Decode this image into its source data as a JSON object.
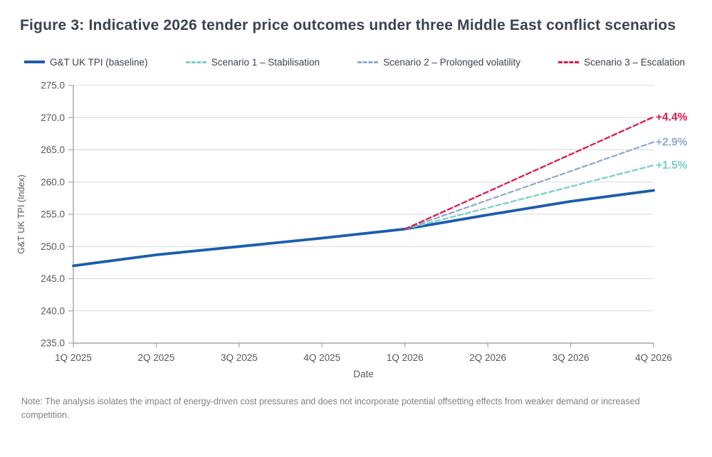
{
  "page": {
    "title": "Figure 3: Indicative 2026 tender price outcomes under three Middle East conflict scenarios",
    "note": "Note: The analysis isolates the impact of energy-driven cost pressures and does not incorporate potential offsetting effects from weaker demand or increased competition."
  },
  "colors": {
    "baseline": "#1c5dac",
    "scenario1": "#79d1c6",
    "scenario2": "#93a9ce",
    "scenario3": "#d91b4d",
    "axis": "#a6a6a6",
    "gridline": "#d9d9d9",
    "tick_text": "#595959",
    "title_text": "#3b4350",
    "note_text": "#808080"
  },
  "legend": [
    {
      "label": "G&T UK TPI (baseline)",
      "color": "#1c5dac",
      "style": "solid"
    },
    {
      "label": "Scenario 1 – Stabilisation",
      "color": "#79d1c6",
      "style": "dashed"
    },
    {
      "label": "Scenario 2 – Prolonged volatility",
      "color": "#93a9ce",
      "style": "dashed"
    },
    {
      "label": "Scenario 3 – Escalation",
      "color": "#d91b4d",
      "style": "dashed"
    }
  ],
  "chart_data": {
    "type": "line",
    "title": "Figure 3: Indicative 2026 tender price outcomes under three Middle East conflict scenarios",
    "xlabel": "Date",
    "ylabel": "G&T UK TPI (Index)",
    "ylim": [
      235.0,
      275.0
    ],
    "ytick_step": 5.0,
    "ytick_labels": [
      "275.0",
      "270.0",
      "265.0",
      "260.0",
      "255.0",
      "250.0",
      "245.0",
      "240.0",
      "235.0"
    ],
    "categories": [
      "1Q 2025",
      "2Q 2025",
      "3Q 2025",
      "4Q 2025",
      "1Q 2026",
      "2Q 2026",
      "3Q 2026",
      "4Q 2026"
    ],
    "grid": "horizontal",
    "legend_position": "top",
    "series": [
      {
        "name": "G&T UK TPI (baseline)",
        "style": "solid",
        "color": "#1c5dac",
        "values": [
          247.0,
          248.7,
          250.0,
          251.3,
          252.7,
          254.9,
          257.0,
          258.7
        ]
      },
      {
        "name": "Scenario 1 – Stabilisation",
        "style": "dashed",
        "color": "#79d1c6",
        "values": [
          null,
          null,
          null,
          null,
          252.7,
          256.0,
          259.3,
          262.6
        ]
      },
      {
        "name": "Scenario 2 – Prolonged volatility",
        "style": "dashed",
        "color": "#93a9ce",
        "values": [
          null,
          null,
          null,
          null,
          252.7,
          257.2,
          261.7,
          266.2
        ]
      },
      {
        "name": "Scenario 3 – Escalation",
        "style": "dashed",
        "color": "#d91b4d",
        "values": [
          null,
          null,
          null,
          null,
          252.7,
          258.5,
          264.3,
          270.1
        ]
      }
    ],
    "annotations": [
      {
        "label": "+4.4%",
        "series": "Scenario 3 – Escalation",
        "value": 270.1,
        "color": "#d91b4d"
      },
      {
        "label": "+2.9%",
        "series": "Scenario 2 – Prolonged volatility",
        "value": 266.2,
        "color": "#93a9ce"
      },
      {
        "label": "+1.5%",
        "series": "Scenario 1 – Stabilisation",
        "value": 262.6,
        "color": "#79d1c6"
      }
    ]
  }
}
